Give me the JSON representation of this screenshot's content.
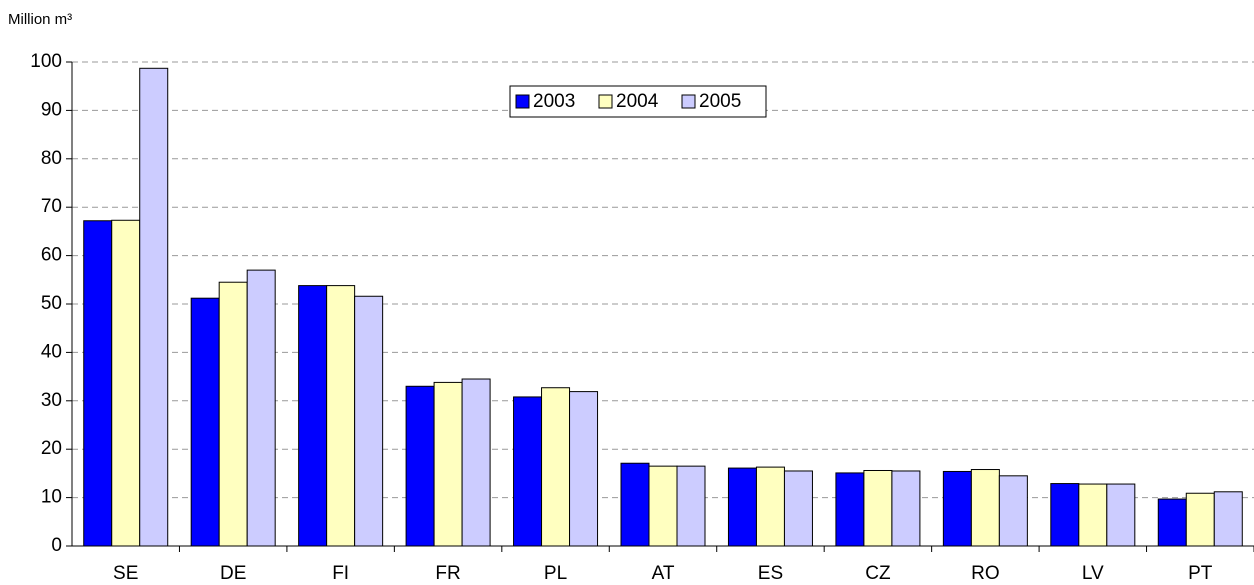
{
  "chart_data": {
    "type": "bar",
    "y_label": "Million m³",
    "categories": [
      "SE",
      "DE",
      "FI",
      "FR",
      "PL",
      "AT",
      "ES",
      "CZ",
      "RO",
      "LV",
      "PT"
    ],
    "series": [
      {
        "name": "2003",
        "color": "#0000ff",
        "values": [
          67.2,
          51.2,
          53.8,
          33.0,
          30.8,
          17.1,
          16.1,
          15.1,
          15.4,
          12.9,
          9.7
        ]
      },
      {
        "name": "2004",
        "color": "#ffffc0",
        "values": [
          67.3,
          54.5,
          53.8,
          33.8,
          32.7,
          16.5,
          16.3,
          15.6,
          15.8,
          12.8,
          10.9
        ]
      },
      {
        "name": "2005",
        "color": "#ccccff",
        "values": [
          98.7,
          57.0,
          51.6,
          34.5,
          31.9,
          16.5,
          15.5,
          15.5,
          14.5,
          12.8,
          11.2
        ]
      }
    ],
    "ylim": [
      0,
      100
    ],
    "yticks": [
      0,
      10,
      20,
      30,
      40,
      50,
      60,
      70,
      80,
      90,
      100
    ],
    "grid": true,
    "legend": "top-center"
  }
}
